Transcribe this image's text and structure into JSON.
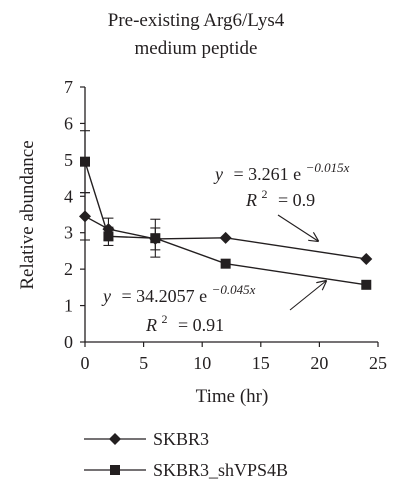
{
  "chart_data": {
    "type": "line",
    "title_line1": "Pre-existing Arg6/Lys4",
    "title_line2": "medium peptide",
    "xlabel": "Time (hr)",
    "ylabel": "Relative abundance",
    "xlim": [
      0,
      25
    ],
    "ylim": [
      0,
      7
    ],
    "xticks": [
      "0",
      "5",
      "10",
      "15",
      "20",
      "25"
    ],
    "yticks": [
      "0",
      "1",
      "2",
      "3",
      "4",
      "5",
      "6",
      "7"
    ],
    "grid": false,
    "legend_position": "bottom",
    "series": [
      {
        "name": "SKBR3",
        "marker": "diamond",
        "color": "#231f20",
        "points": [
          {
            "x": 0,
            "y": 3.45,
            "err": 0.65
          },
          {
            "x": 2,
            "y": 3.1,
            "err": 0.3
          },
          {
            "x": 6,
            "y": 2.83,
            "err": 0.3
          },
          {
            "x": 12,
            "y": 2.86,
            "err": 0
          },
          {
            "x": 24,
            "y": 2.28,
            "err": 0
          }
        ]
      },
      {
        "name": "SKBR3_shVPS4B",
        "marker": "square",
        "color": "#231f20",
        "points": [
          {
            "x": 0,
            "y": 4.95,
            "err": 0.85
          },
          {
            "x": 2,
            "y": 2.9,
            "err": 0.25
          },
          {
            "x": 6,
            "y": 2.85,
            "err": 0.52
          },
          {
            "x": 12,
            "y": 2.15,
            "err": 0
          },
          {
            "x": 24,
            "y": 1.57,
            "err": 0
          }
        ]
      }
    ],
    "annotations": [
      {
        "series": "SKBR3",
        "eq_y": "y",
        "eq_coef": "= 3.261 e",
        "eq_exp": "−0.015x",
        "r2_label": "R",
        "r2_sup": "2",
        "r2_value": "= 0.9"
      },
      {
        "series": "SKBR3_shVPS4B",
        "eq_y": "y",
        "eq_coef": "= 34.2057 e",
        "eq_exp": "−0.045x",
        "r2_label": "R",
        "r2_sup": "2",
        "r2_value": "= 0.91"
      }
    ]
  }
}
